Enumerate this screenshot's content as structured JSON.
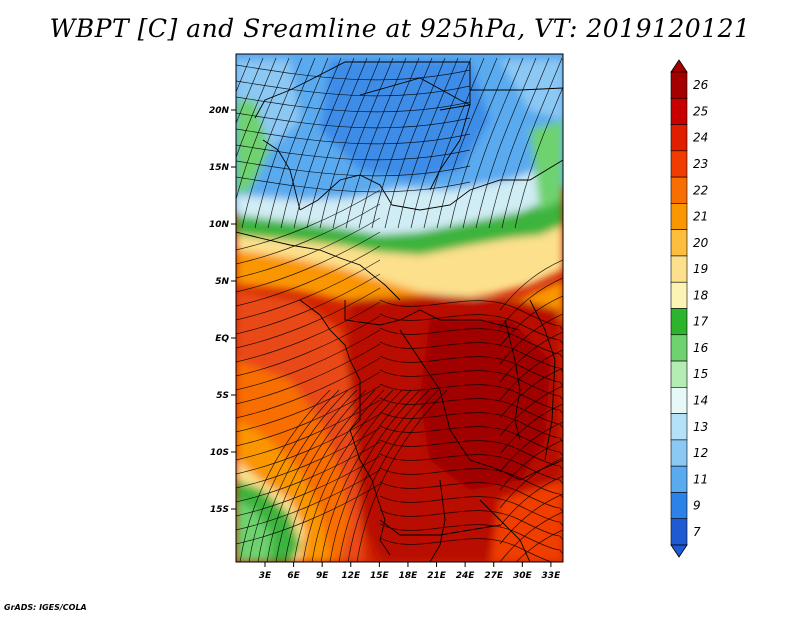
{
  "title": "WBPT [C] and Sreamline at 925hPa, VT: 2019120121",
  "footer": "GrADS: IGES/COLA",
  "map": {
    "lat_ticks": [
      {
        "label": "20N",
        "value": 20
      },
      {
        "label": "15N",
        "value": 15
      },
      {
        "label": "10N",
        "value": 10
      },
      {
        "label": "5N",
        "value": 5
      },
      {
        "label": "EQ",
        "value": 0
      },
      {
        "label": "5S",
        "value": -5
      },
      {
        "label": "10S",
        "value": -10
      },
      {
        "label": "15S",
        "value": -15
      }
    ],
    "lon_ticks": [
      {
        "label": "3E",
        "value": 3
      },
      {
        "label": "6E",
        "value": 6
      },
      {
        "label": "9E",
        "value": 9
      },
      {
        "label": "12E",
        "value": 12
      },
      {
        "label": "15E",
        "value": 15
      },
      {
        "label": "18E",
        "value": 18
      },
      {
        "label": "21E",
        "value": 21
      },
      {
        "label": "24E",
        "value": 24
      },
      {
        "label": "27E",
        "value": 27
      },
      {
        "label": "30E",
        "value": 30
      },
      {
        "label": "33E",
        "value": 33
      }
    ]
  },
  "colorbar": {
    "labels": [
      "26",
      "25",
      "24",
      "23",
      "22",
      "21",
      "20",
      "19",
      "18",
      "17",
      "16",
      "15",
      "14",
      "13",
      "12",
      "11",
      "9",
      "7"
    ],
    "colors": [
      "#a50000",
      "#c80000",
      "#e01e00",
      "#f03c00",
      "#f86e00",
      "#fa9600",
      "#fcbe3c",
      "#fce08c",
      "#fcf4b4",
      "#2cb42c",
      "#6ed26e",
      "#b4ecb4",
      "#e6f8f8",
      "#b4e0f8",
      "#8cc8f4",
      "#5aaaf0",
      "#2c82e8",
      "#1e5ad2"
    ]
  }
}
